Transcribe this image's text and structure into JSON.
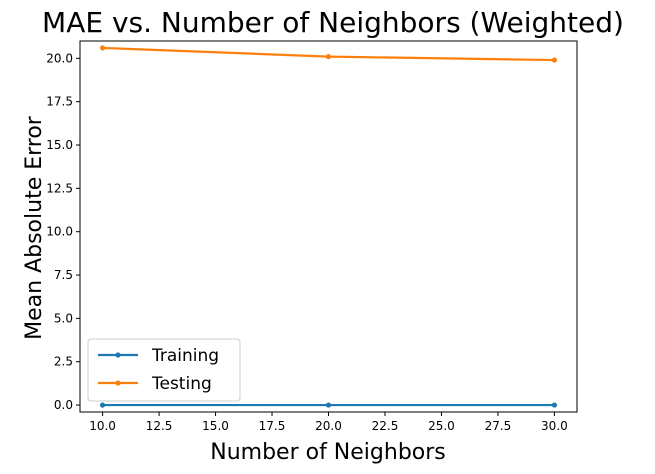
{
  "chart_data": {
    "type": "line",
    "title": "MAE vs. Number of Neighbors (Weighted)",
    "xlabel": "Number of Neighbors",
    "ylabel": "Mean Absolute Error",
    "x": [
      10,
      20,
      30
    ],
    "xlim": [
      9,
      31
    ],
    "ylim": [
      -0.4,
      21.0
    ],
    "xticks": [
      "10.0",
      "12.5",
      "15.0",
      "17.5",
      "20.0",
      "22.5",
      "25.0",
      "27.5",
      "30.0"
    ],
    "yticks": [
      "0.0",
      "2.5",
      "5.0",
      "7.5",
      "10.0",
      "12.5",
      "15.0",
      "17.5",
      "20.0"
    ],
    "series": [
      {
        "name": "Training",
        "values": [
          0.0,
          0.0,
          0.0
        ],
        "color": "#1f77b4"
      },
      {
        "name": "Testing",
        "values": [
          20.6,
          20.1,
          19.9
        ],
        "color": "#ff7f0e"
      }
    ],
    "legend_position": "lower-left",
    "grid": false
  }
}
